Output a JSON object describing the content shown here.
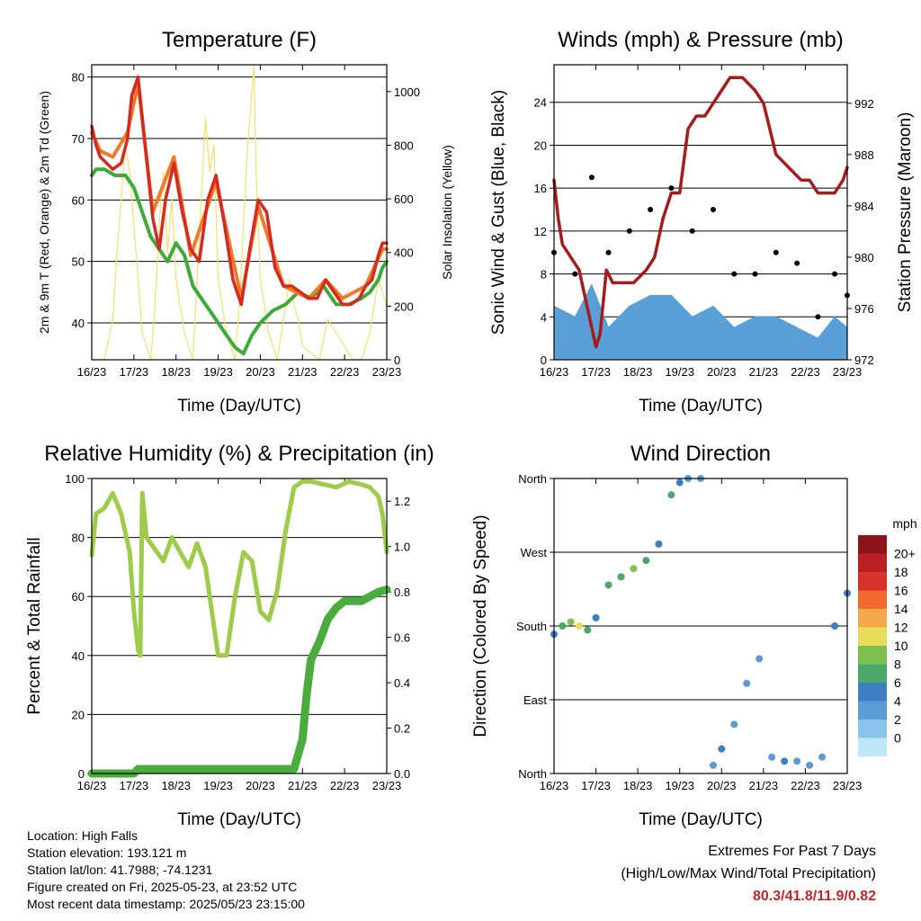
{
  "x_ticks": [
    "16/23",
    "17/23",
    "18/23",
    "19/23",
    "20/23",
    "21/23",
    "22/23",
    "23/23"
  ],
  "x_title": "Time (Day/UTC)",
  "colors": {
    "temp_2m": "#d42a20",
    "temp_9m": "#f07a28",
    "dewpoint": "#3daa3a",
    "solar": "#f5e06a",
    "sonic_wind": "#5aa0d8",
    "gust": "#000000",
    "pressure": "#a51c1c",
    "humidity": "#9ccc4a",
    "precip": "#4aac3c",
    "extremes": "#c0262a"
  },
  "info": {
    "location": "Location: High Falls",
    "elevation": "Station elevation: 193.121 m",
    "latlon": "Station lat/lon: 41.7988; -74.1231",
    "created": "Figure created on Fri, 2025-05-23, at 23:52 UTC",
    "recent": "Most recent data timestamp: 2025/05/23 23:15:00"
  },
  "extremes": {
    "title": "Extremes For Past 7 Days",
    "subtitle": "(High/Low/Max Wind/Total Precipitation)",
    "values": "80.3/41.8/11.9/0.82"
  },
  "chart_data": [
    {
      "type": "line",
      "title": "Temperature (F)",
      "xlabel": "Time (Day/UTC)",
      "ylabel": "2m & 9m T (Red, Orange) & 2m Td (Green)",
      "y2label": "Solar Insolation (Yellow)",
      "ylim": [
        34,
        82
      ],
      "yticks": [
        40,
        50,
        60,
        70,
        80
      ],
      "y2lim": [
        0,
        1100
      ],
      "y2ticks": [
        0,
        200,
        400,
        600,
        800,
        1000
      ],
      "xlim": [
        0,
        7
      ],
      "series": [
        {
          "name": "2m T",
          "color": "temp_2m",
          "x": [
            0,
            0.1,
            0.2,
            0.35,
            0.5,
            0.7,
            0.85,
            0.95,
            1.1,
            1.25,
            1.45,
            1.6,
            1.75,
            1.95,
            2.15,
            2.35,
            2.55,
            2.75,
            2.95,
            3.15,
            3.35,
            3.55,
            3.75,
            3.95,
            4.15,
            4.35,
            4.55,
            4.75,
            4.95,
            5.15,
            5.35,
            5.55,
            5.75,
            5.95,
            6.15,
            6.35,
            6.5,
            6.65,
            6.8,
            6.9,
            7
          ],
          "y": [
            72,
            69,
            67,
            66,
            65,
            66,
            70,
            77,
            80,
            70,
            57,
            52,
            60,
            66,
            58,
            52,
            50,
            60,
            64,
            56,
            47,
            43,
            52,
            60,
            58,
            49,
            46,
            46,
            45,
            44,
            44,
            47,
            45,
            43,
            43,
            44,
            46,
            47,
            51,
            53,
            53
          ]
        },
        {
          "name": "9m T",
          "color": "temp_9m",
          "x": [
            0,
            0.2,
            0.5,
            0.85,
            1.1,
            1.45,
            1.95,
            2.35,
            2.95,
            3.55,
            3.95,
            4.55,
            5.15,
            5.55,
            5.95,
            6.5,
            6.9,
            7
          ],
          "y": [
            71,
            68,
            67,
            71,
            79,
            58,
            67,
            51,
            63,
            44,
            59,
            46,
            44,
            47,
            44,
            46,
            52,
            52
          ]
        },
        {
          "name": "2m Td",
          "color": "dewpoint",
          "x": [
            0,
            0.1,
            0.3,
            0.55,
            0.8,
            1.0,
            1.2,
            1.4,
            1.6,
            1.8,
            2.0,
            2.2,
            2.4,
            2.6,
            2.8,
            3.0,
            3.2,
            3.4,
            3.6,
            3.8,
            4.0,
            4.3,
            4.6,
            4.9,
            5.2,
            5.5,
            5.8,
            6.1,
            6.4,
            6.6,
            6.8,
            6.9,
            7
          ],
          "y": [
            64,
            65,
            65,
            64,
            64,
            62,
            58,
            54,
            52,
            50,
            53,
            51,
            46,
            44,
            42,
            40,
            38,
            36,
            35,
            38,
            40,
            42,
            43,
            45,
            44,
            46,
            43,
            43,
            44,
            45,
            47,
            49,
            50
          ]
        },
        {
          "name": "Solar",
          "color": "solar",
          "x": [
            0,
            0.3,
            0.5,
            0.6,
            0.7,
            0.8,
            0.9,
            1.0,
            1.2,
            1.4,
            1.5,
            1.6,
            1.7,
            1.8,
            1.9,
            2.0,
            2.2,
            2.4,
            2.5,
            2.6,
            2.7,
            2.8,
            2.9,
            3.0,
            3.2,
            3.4,
            3.5,
            3.6,
            3.7,
            3.8,
            3.85,
            3.9,
            4.0,
            4.2,
            4.4,
            4.5,
            4.6,
            4.7,
            4.8,
            4.9,
            5.0,
            5.4,
            5.6,
            5.8,
            6.2,
            6.4,
            6.6,
            6.8,
            7
          ],
          "y": [
            0,
            0,
            150,
            400,
            600,
            800,
            700,
            500,
            100,
            0,
            200,
            500,
            700,
            400,
            600,
            300,
            100,
            0,
            300,
            600,
            900,
            700,
            800,
            300,
            100,
            0,
            200,
            500,
            800,
            1000,
            1100,
            700,
            300,
            100,
            0,
            100,
            200,
            300,
            200,
            150,
            50,
            0,
            150,
            100,
            0,
            0,
            100,
            300,
            200
          ]
        }
      ]
    },
    {
      "type": "scatter",
      "title": "Winds (mph) & Pressure (mb)",
      "xlabel": "Time (Day/UTC)",
      "ylabel": "Sonic Wind & Gust (Blue, Black)",
      "y2label": "Station Pressure (Maroon)",
      "ylim": [
        0,
        27.5
      ],
      "yticks": [
        0,
        4,
        8,
        12,
        16,
        20,
        24
      ],
      "y2lim": [
        972,
        995
      ],
      "y2ticks": [
        972,
        976,
        980,
        984,
        988,
        992
      ],
      "xlim": [
        0,
        7
      ],
      "series": [
        {
          "name": "Sonic Wind",
          "color": "sonic_wind",
          "x": [
            0,
            0.5,
            0.9,
            1.3,
            1.8,
            2.3,
            2.8,
            3.3,
            3.8,
            4.3,
            4.8,
            5.3,
            5.8,
            6.3,
            6.7,
            7
          ],
          "y": [
            5,
            4,
            7,
            3,
            5,
            6,
            6,
            4,
            5,
            3,
            4,
            4,
            3,
            2,
            4,
            3
          ]
        },
        {
          "name": "Gust",
          "color": "gust",
          "x": [
            0,
            0.5,
            0.9,
            1.3,
            1.8,
            2.3,
            2.8,
            3.3,
            3.8,
            4.3,
            4.8,
            5.3,
            5.8,
            6.3,
            6.7,
            7
          ],
          "y": [
            10,
            8,
            17,
            10,
            12,
            14,
            16,
            12,
            14,
            8,
            8,
            10,
            9,
            4,
            8,
            6
          ]
        },
        {
          "name": "Station Pressure",
          "color": "pressure",
          "x": [
            0,
            0.1,
            0.2,
            0.4,
            0.6,
            0.8,
            1.0,
            1.1,
            1.25,
            1.4,
            1.6,
            1.9,
            2.2,
            2.4,
            2.6,
            2.8,
            3.0,
            3.2,
            3.4,
            3.6,
            3.8,
            4.0,
            4.2,
            4.5,
            4.8,
            5.0,
            5.3,
            5.6,
            5.9,
            6.1,
            6.3,
            6.5,
            6.7,
            6.9,
            7
          ],
          "y": [
            986,
            983,
            981,
            980,
            979,
            976,
            973,
            974,
            979,
            978,
            978,
            978,
            979,
            980,
            983,
            985,
            985,
            990,
            991,
            991,
            992,
            993,
            994,
            994,
            993,
            992,
            988,
            987,
            986,
            986,
            985,
            985,
            985,
            986,
            987
          ]
        }
      ]
    },
    {
      "type": "line",
      "title": "Relative Humidity (%) & Precipitation (in)",
      "xlabel": "Time (Day/UTC)",
      "ylabel": "Percent & Total Rainfall",
      "ylim": [
        0,
        100
      ],
      "yticks": [
        0,
        20,
        40,
        60,
        80,
        100
      ],
      "y2lim": [
        0,
        1.3
      ],
      "y2ticks": [
        0.0,
        0.2,
        0.4,
        0.6,
        0.8,
        1.0,
        1.2
      ],
      "xlim": [
        0,
        7
      ],
      "series": [
        {
          "name": "Relative Humidity",
          "color": "humidity",
          "x": [
            0,
            0.1,
            0.3,
            0.5,
            0.7,
            0.9,
            1.0,
            1.1,
            1.15,
            1.2,
            1.3,
            1.5,
            1.7,
            1.9,
            2.1,
            2.3,
            2.5,
            2.7,
            2.85,
            3.0,
            3.2,
            3.4,
            3.6,
            3.8,
            4.0,
            4.2,
            4.4,
            4.6,
            4.8,
            5.0,
            5.2,
            5.5,
            5.8,
            6.1,
            6.4,
            6.6,
            6.8,
            6.9,
            7
          ],
          "y": [
            74,
            88,
            90,
            95,
            88,
            75,
            55,
            42,
            40,
            95,
            80,
            76,
            72,
            80,
            75,
            70,
            78,
            70,
            55,
            40,
            40,
            60,
            75,
            72,
            55,
            52,
            62,
            82,
            97,
            99,
            99,
            98,
            97,
            99,
            98,
            97,
            94,
            88,
            75
          ]
        },
        {
          "name": "Total Precipitation",
          "color": "precip",
          "x": [
            0,
            1.0,
            1.1,
            4.8,
            5.0,
            5.1,
            5.2,
            5.4,
            5.6,
            5.8,
            6.0,
            6.4,
            6.8,
            7
          ],
          "y": [
            0,
            0,
            0.02,
            0.02,
            0.15,
            0.35,
            0.5,
            0.58,
            0.68,
            0.73,
            0.76,
            0.76,
            0.8,
            0.81
          ]
        }
      ]
    },
    {
      "type": "scatter",
      "title": "Wind Direction",
      "xlabel": "Time (Day/UTC)",
      "ylabel": "Direction (Colored By Speed)",
      "ycategories": [
        "North",
        "East",
        "South",
        "West",
        "North"
      ],
      "xlim": [
        0,
        7
      ],
      "legend_title": "mph",
      "legend_labels": [
        "0",
        "2",
        "4",
        "6",
        "8",
        "10",
        "12",
        "14",
        "16",
        "18",
        "20+"
      ],
      "legend_colors": [
        "#bfe6f8",
        "#8ac4ea",
        "#5b9ad4",
        "#3d7fc0",
        "#4aa86a",
        "#7cc050",
        "#e8dc58",
        "#f5a84a",
        "#ef6a2c",
        "#d8322a",
        "#b81f22",
        "#8a1418"
      ],
      "series": [
        {
          "name": "Direction",
          "x": [
            0,
            0.2,
            0.4,
            0.6,
            0.8,
            1.0,
            1.3,
            1.6,
            1.9,
            2.2,
            2.5,
            2.8,
            3.0,
            3.2,
            3.5,
            3.8,
            4.0,
            4.3,
            4.6,
            4.9,
            5.2,
            5.5,
            5.8,
            6.1,
            6.4,
            6.7,
            7
          ],
          "y": [
            170,
            180,
            185,
            180,
            175,
            190,
            230,
            240,
            250,
            260,
            280,
            340,
            355,
            360,
            360,
            10,
            30,
            60,
            110,
            140,
            20,
            15,
            15,
            10,
            20,
            180,
            220
          ],
          "speed": [
            4,
            6,
            8,
            10,
            6,
            4,
            6,
            6,
            8,
            6,
            4,
            6,
            4,
            2,
            2,
            2,
            4,
            2,
            2,
            2,
            2,
            4,
            2,
            2,
            2,
            4,
            4
          ]
        }
      ]
    }
  ]
}
